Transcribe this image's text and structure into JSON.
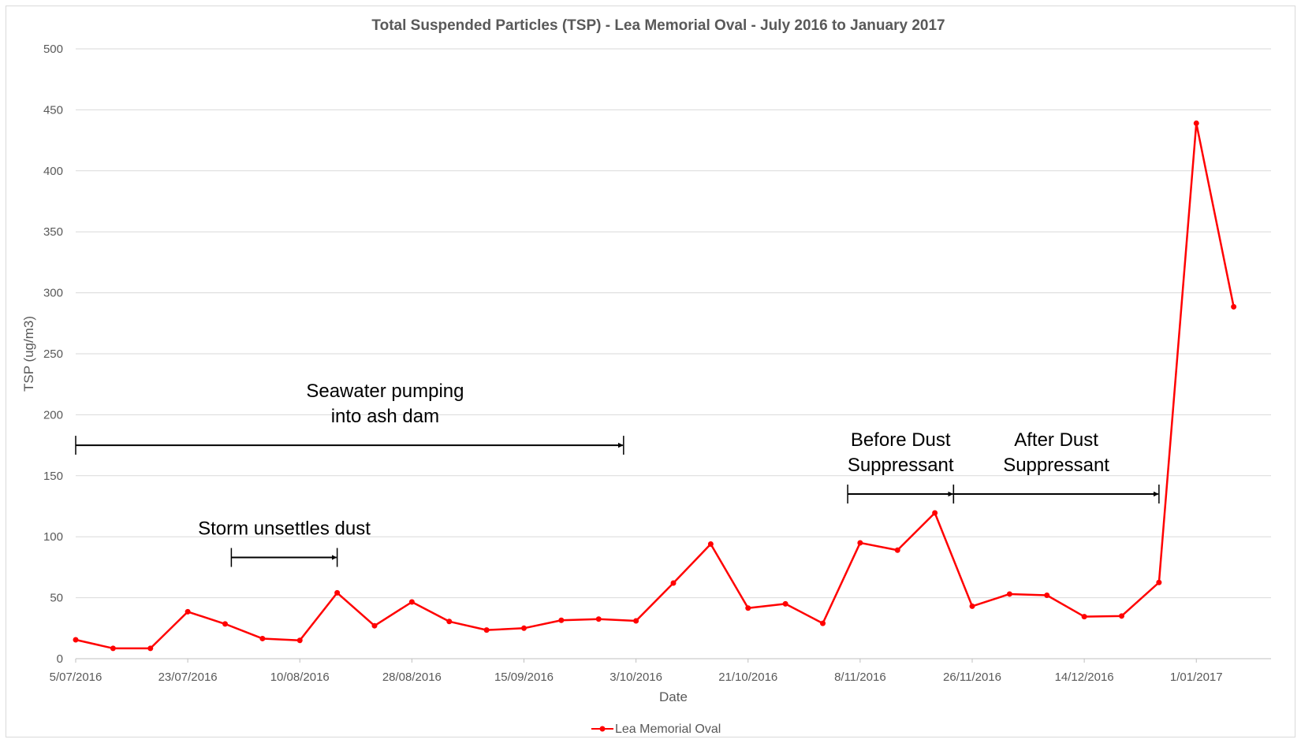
{
  "chart_data": {
    "type": "line",
    "title": "Total Suspended Particles (TSP) - Lea Memorial Oval - July 2016 to January 2017",
    "xlabel": "Date",
    "ylabel": "TSP (ug/m3)",
    "ylim": [
      0,
      500
    ],
    "yticks": [
      0,
      50,
      100,
      150,
      200,
      250,
      300,
      350,
      400,
      450,
      500
    ],
    "x_tick_labels": [
      "5/07/2016",
      "23/07/2016",
      "10/08/2016",
      "28/08/2016",
      "15/09/2016",
      "3/10/2016",
      "21/10/2016",
      "8/11/2016",
      "26/11/2016",
      "14/12/2016",
      "1/01/2017"
    ],
    "x_tick_dates": [
      "2016-07-05",
      "2016-07-23",
      "2016-08-10",
      "2016-08-28",
      "2016-09-15",
      "2016-10-03",
      "2016-10-21",
      "2016-11-08",
      "2016-11-26",
      "2016-12-14",
      "2017-01-01"
    ],
    "xlim": [
      "2016-07-05",
      "2017-01-13"
    ],
    "grid": true,
    "legend_position": "bottom",
    "series": [
      {
        "name": "Lea Memorial Oval",
        "color": "#ff0000",
        "x": [
          "2016-07-05",
          "2016-07-11",
          "2016-07-17",
          "2016-07-23",
          "2016-07-29",
          "2016-08-04",
          "2016-08-10",
          "2016-08-16",
          "2016-08-22",
          "2016-08-28",
          "2016-09-03",
          "2016-09-09",
          "2016-09-15",
          "2016-09-21",
          "2016-09-27",
          "2016-10-03",
          "2016-10-09",
          "2016-10-15",
          "2016-10-21",
          "2016-10-27",
          "2016-11-02",
          "2016-11-08",
          "2016-11-14",
          "2016-11-20",
          "2016-11-26",
          "2016-12-02",
          "2016-12-08",
          "2016-12-14",
          "2016-12-20",
          "2016-12-26",
          "2017-01-01",
          "2017-01-07"
        ],
        "y": [
          15.5,
          8.5,
          8.5,
          38.5,
          28.5,
          16.5,
          15,
          54,
          27,
          46.5,
          30.5,
          23.5,
          25,
          31.5,
          32.5,
          31,
          62,
          94,
          41.5,
          45,
          29,
          95,
          89,
          119.5,
          43,
          53,
          52,
          34.5,
          35,
          62.5,
          439,
          288.5
        ]
      }
    ],
    "annotations": [
      {
        "label_lines": [
          "Seawater pumping",
          "into ash dam"
        ],
        "y_level": 175,
        "start": "2016-07-05",
        "end": "2016-10-01"
      },
      {
        "label_lines": [
          "Storm unsettles dust"
        ],
        "y_level": 83,
        "start": "2016-07-30",
        "end": "2016-08-16"
      },
      {
        "label_lines": [
          "Before Dust",
          "Suppressant"
        ],
        "y_level": 135,
        "start": "2016-11-06",
        "end": "2016-11-23"
      },
      {
        "label_lines": [
          "After Dust",
          "Suppressant"
        ],
        "y_level": 135,
        "start": "2016-11-23",
        "end": "2016-12-26"
      }
    ]
  }
}
